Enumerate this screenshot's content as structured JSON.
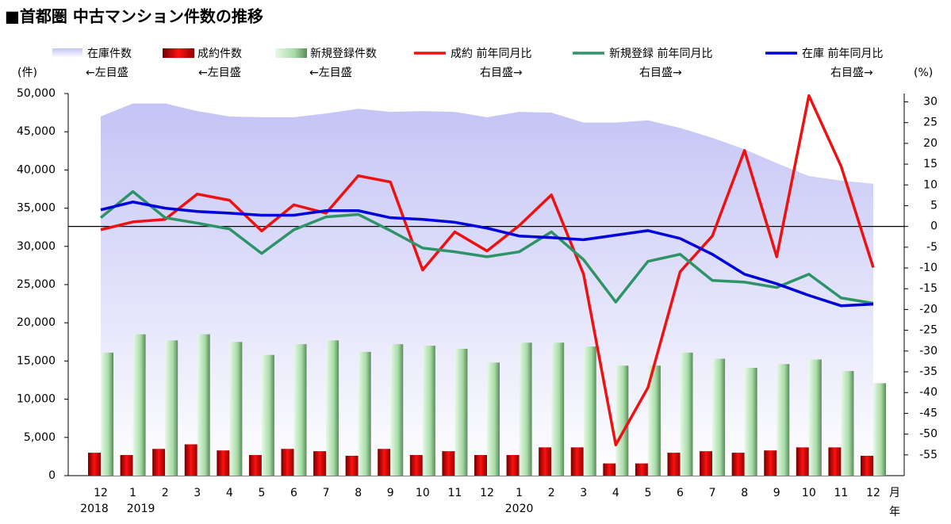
{
  "chart_data": {
    "type": "combo",
    "title": "■首都圏 中古マンション件数の推移",
    "y_label": "(件)",
    "y2_label": "(%)",
    "x_unit": "月",
    "year_unit": "年",
    "categories": [
      "12",
      "1",
      "2",
      "3",
      "4",
      "5",
      "6",
      "7",
      "8",
      "9",
      "10",
      "11",
      "12",
      "1",
      "2",
      "3",
      "4",
      "5",
      "6",
      "7",
      "8",
      "9",
      "10",
      "11",
      "12"
    ],
    "years": [
      "2018",
      "2019",
      null,
      null,
      null,
      null,
      null,
      null,
      null,
      null,
      null,
      null,
      null,
      "2020",
      null,
      null,
      null,
      null,
      null,
      null,
      null,
      null,
      null,
      null,
      null
    ],
    "ylim": [
      0,
      50000
    ],
    "yticks": [
      0,
      {
        "value": 5000,
        "label": "5,000"
      },
      {
        "value": 10000,
        "label": "10,000"
      },
      {
        "value": 15000,
        "label": "15,000"
      },
      {
        "value": 20000,
        "label": "20,000"
      },
      {
        "value": 25000,
        "label": "25,000"
      },
      {
        "value": 30000,
        "label": "30,000"
      },
      {
        "value": 35000,
        "label": "35,000"
      },
      {
        "value": 40000,
        "label": "40,000"
      },
      {
        "value": 45000,
        "label": "45,000"
      },
      {
        "value": 50000,
        "label": "50,000"
      }
    ],
    "y2lim": [
      -60,
      32
    ],
    "y2ticks": [
      -55,
      -50,
      -45,
      -40,
      -35,
      -30,
      -25,
      -20,
      -15,
      -10,
      -5,
      0,
      5,
      10,
      15,
      20,
      25,
      30
    ],
    "series": [
      {
        "name": "在庫件数",
        "note": "←左目盛",
        "kind": "area",
        "color": "#c4c4f6",
        "values": [
          47000,
          48700,
          48700,
          47700,
          47000,
          46900,
          46900,
          47400,
          48000,
          47600,
          47700,
          47600,
          46900,
          47600,
          47500,
          46200,
          46200,
          46500,
          45500,
          44200,
          42700,
          40900,
          39200,
          38600,
          38200
        ]
      },
      {
        "name": "成約件数",
        "note": "←左目盛",
        "kind": "bar",
        "color": "#e00000",
        "values": [
          3000,
          2700,
          3500,
          4100,
          3300,
          2700,
          3500,
          3200,
          2600,
          3500,
          2700,
          3200,
          2700,
          2700,
          3700,
          3700,
          1600,
          1600,
          3000,
          3200,
          3000,
          3300,
          3700,
          3700,
          2600
        ]
      },
      {
        "name": "新規登録件数",
        "note": "←左目盛",
        "kind": "bar",
        "color": "#a8dca8",
        "values": [
          16100,
          18500,
          17700,
          18500,
          17500,
          15800,
          17200,
          17700,
          16200,
          17200,
          17000,
          16600,
          14800,
          17400,
          17400,
          16900,
          14400,
          14400,
          16100,
          15300,
          14100,
          14600,
          15200,
          13700,
          12100
        ]
      },
      {
        "name": "成約 前年同月比",
        "note": "右目盛→",
        "kind": "line",
        "axis": "y2",
        "color": "#ee1111",
        "values": [
          -0.8,
          1.1,
          1.7,
          7.8,
          6.3,
          -1.1,
          5.2,
          3.2,
          12.2,
          10.7,
          -10.5,
          -1.3,
          -5.9,
          0.2,
          7.6,
          -11.5,
          -52.6,
          -38.8,
          -10.9,
          -2.3,
          18.3,
          -7.3,
          31.5,
          14.5,
          -9.9
        ]
      },
      {
        "name": "新規登録 前年同月比",
        "note": "右目盛→",
        "kind": "line",
        "axis": "y2",
        "color": "#2e9468",
        "values": [
          2.1,
          8.4,
          2.1,
          0.8,
          -0.6,
          -6.5,
          -0.8,
          2.3,
          2.9,
          -1.0,
          -5.2,
          -6.1,
          -7.3,
          -6.1,
          -1.3,
          -8.0,
          -18.2,
          -8.4,
          -6.7,
          -13.0,
          -13.4,
          -14.7,
          -11.5,
          -17.2,
          -18.5
        ]
      },
      {
        "name": "在庫 前年同月比",
        "note": "右目盛→",
        "kind": "line",
        "axis": "y2",
        "color": "#0000dd",
        "values": [
          4.0,
          5.9,
          4.4,
          3.6,
          3.2,
          2.7,
          2.7,
          3.8,
          3.8,
          2.1,
          1.7,
          1.0,
          -0.4,
          -2.3,
          -2.7,
          -3.2,
          -2.1,
          -1.0,
          -2.9,
          -6.7,
          -11.5,
          -13.8,
          -16.6,
          -19.1,
          -18.7
        ]
      }
    ]
  }
}
